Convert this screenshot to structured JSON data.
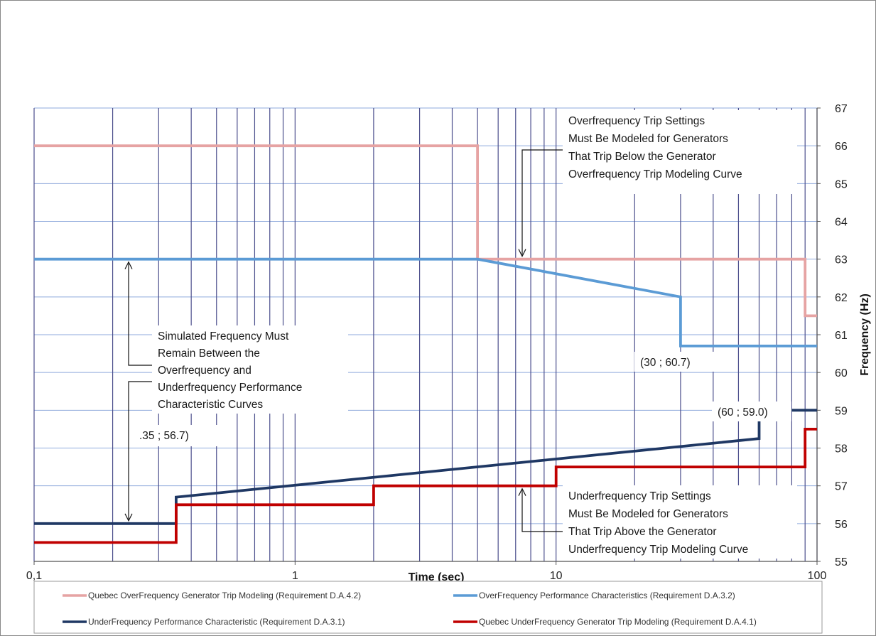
{
  "chart_data": {
    "type": "line",
    "xlabel": "Time (sec)",
    "ylabel": "Frequency (Hz)",
    "x_scale": "log",
    "xlim": [
      0.1,
      100
    ],
    "ylim": [
      55,
      67
    ],
    "x_ticks": [
      "0,1",
      "1",
      "10",
      "100"
    ],
    "y_ticks": [
      "55",
      "56",
      "57",
      "58",
      "59",
      "60",
      "61",
      "62",
      "63",
      "64",
      "65",
      "66",
      "67"
    ],
    "grid": true,
    "legend_position": "bottom",
    "series": [
      {
        "name": "Quebec OverFrequency Generator Trip Modeling (Requirement D.A.4.2)",
        "color": "#e6a3a3",
        "x": [
          0.1,
          5,
          5,
          90,
          90,
          100
        ],
        "y": [
          66,
          66,
          63,
          63,
          61.5,
          61.5
        ]
      },
      {
        "name": "OverFrequency Performance Characteristics (Requirement D.A.3.2)",
        "color": "#5b9bd5",
        "x": [
          0.1,
          5,
          30,
          30,
          100
        ],
        "y": [
          63,
          63,
          62,
          60.7,
          60.7
        ]
      },
      {
        "name": "UnderFrequency Performance Characteristic (Requirement D.A.3.1)",
        "color": "#1f3864",
        "x": [
          0.1,
          0.35,
          0.35,
          60,
          60,
          100
        ],
        "y": [
          56,
          56,
          56.7,
          58.25,
          59,
          59
        ]
      },
      {
        "name": "Quebec UnderFrequency Generator Trip Modeling (Requirement D.A.4.1)",
        "color": "#c00000",
        "x": [
          0.1,
          0.35,
          0.35,
          2,
          2,
          10,
          10,
          90,
          90,
          100
        ],
        "y": [
          55.5,
          55.5,
          56.5,
          56.5,
          57,
          57,
          57.5,
          57.5,
          58.5,
          58.5
        ]
      }
    ],
    "annotations": [
      {
        "lines": [
          "Overfrequency Trip Settings",
          "Must Be Modeled for Generators",
          "That Trip Below the Generator",
          "Overfrequency Trip Modeling Curve"
        ]
      },
      {
        "lines": [
          "Simulated Frequency Must",
          "Remain Between the",
          "Overfrequency and",
          "Underfrequency Performance",
          "Characteristic Curves"
        ]
      },
      {
        "lines": [
          "Underfrequency Trip Settings",
          "Must Be Modeled for Generators",
          "That Trip Above the Generator",
          "Underfrequency Trip Modeling Curve"
        ]
      },
      {
        "lines": [
          "(30 ; 60.7)"
        ]
      },
      {
        "lines": [
          "(60 ; 59.0)"
        ]
      },
      {
        "lines": [
          ".35 ; 56.7)"
        ]
      }
    ]
  }
}
